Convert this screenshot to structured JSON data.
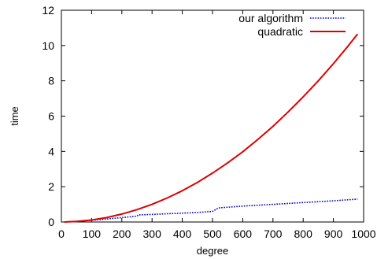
{
  "chart_data": {
    "type": "line",
    "title": "",
    "xlabel": "degree",
    "ylabel": "time",
    "xlim": [
      0,
      1000
    ],
    "ylim": [
      0,
      12
    ],
    "xticks": [
      0,
      100,
      200,
      300,
      400,
      500,
      600,
      700,
      800,
      900,
      1000
    ],
    "yticks": [
      0,
      2,
      4,
      6,
      8,
      10,
      12
    ],
    "legend_position": "top-right",
    "grid": false,
    "series": [
      {
        "name": "our algorithm",
        "color": "#0000cc",
        "style": "dotted",
        "x": [
          10,
          50,
          100,
          150,
          200,
          250,
          255,
          300,
          350,
          400,
          450,
          500,
          505,
          520,
          600,
          700,
          800,
          900,
          980
        ],
        "y": [
          0.0,
          0.04,
          0.1,
          0.17,
          0.25,
          0.33,
          0.4,
          0.43,
          0.47,
          0.5,
          0.54,
          0.6,
          0.65,
          0.8,
          0.9,
          1.0,
          1.1,
          1.2,
          1.3
        ]
      },
      {
        "name": "quadratic",
        "color": "#dd0000",
        "style": "solid",
        "x": [
          10,
          50,
          100,
          150,
          200,
          250,
          300,
          350,
          400,
          450,
          500,
          550,
          600,
          650,
          700,
          750,
          800,
          850,
          900,
          950,
          980
        ],
        "y": [
          0.0,
          0.03,
          0.11,
          0.25,
          0.45,
          0.7,
          1.0,
          1.36,
          1.77,
          2.24,
          2.77,
          3.35,
          3.98,
          4.68,
          5.42,
          6.23,
          7.09,
          8.0,
          8.97,
          10.0,
          10.65
        ]
      }
    ]
  }
}
